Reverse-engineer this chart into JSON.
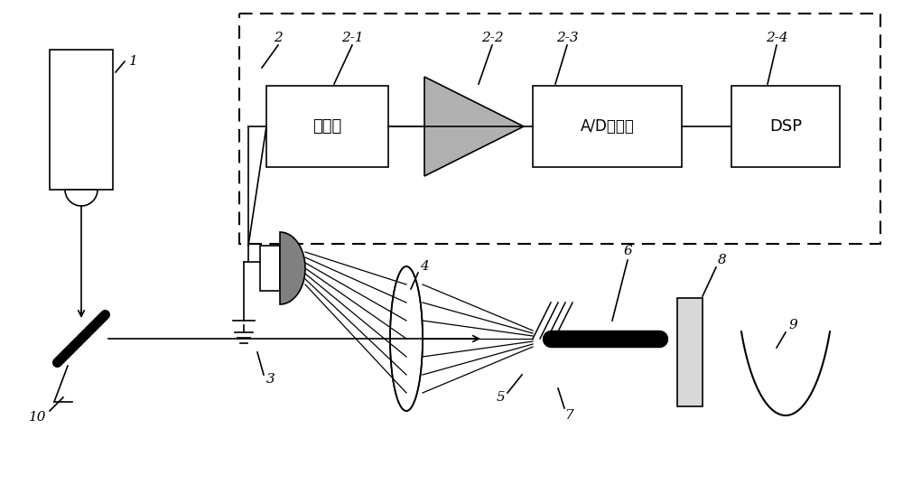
{
  "bg_color": "#ffffff",
  "fig_width": 10.0,
  "fig_height": 5.47,
  "dpi": 100,
  "text_filter": "滤波器",
  "text_ad": "A/D转换器",
  "text_dsp": "DSP",
  "label_font": 11
}
